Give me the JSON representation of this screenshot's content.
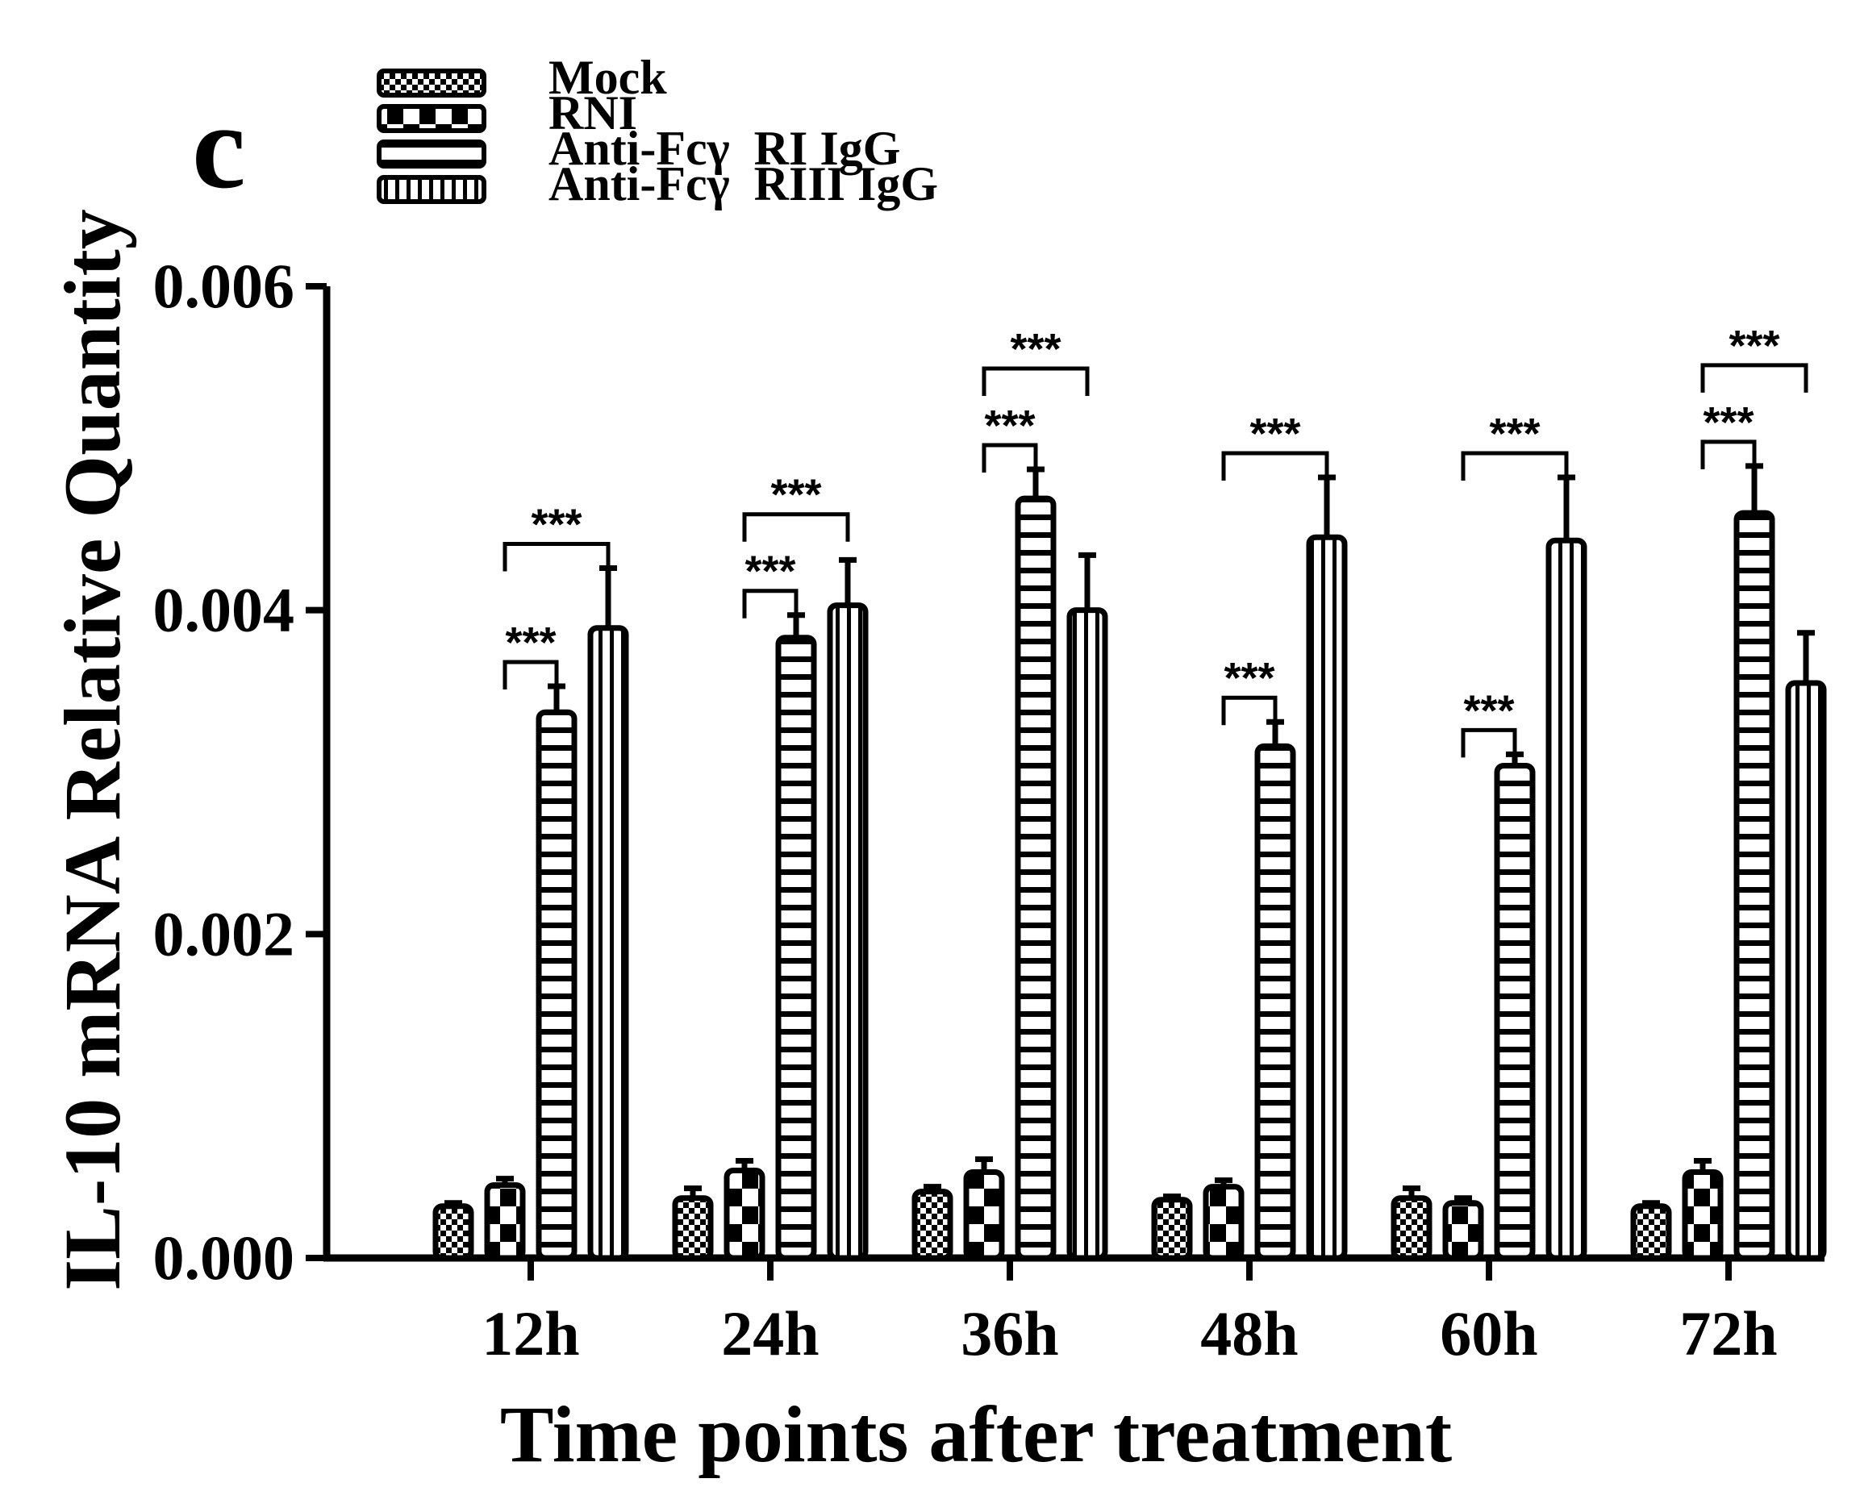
{
  "panel_label": "c",
  "chart_data": {
    "type": "bar",
    "title": "",
    "xlabel": "Time points after treatment",
    "ylabel": "IL-10 mRNA Relative Quantity",
    "ylim": [
      0,
      0.006
    ],
    "yticks": [
      "0.000",
      "0.002",
      "0.004",
      "0.006"
    ],
    "ytick_values": [
      0,
      0.002,
      0.004,
      0.006
    ],
    "categories": [
      "12h",
      "24h",
      "36h",
      "48h",
      "60h",
      "72h"
    ],
    "legend_position": "top-left",
    "series": [
      {
        "name": "Mock",
        "pattern": "checker",
        "values": [
          0.00032,
          0.00037,
          0.00041,
          0.00036,
          0.00037,
          0.00032
        ],
        "errors": [
          2e-05,
          6e-05,
          3e-05,
          2e-05,
          6e-05,
          2e-05
        ]
      },
      {
        "name": "RNI",
        "pattern": "blocks",
        "values": [
          0.00045,
          0.00054,
          0.00053,
          0.00044,
          0.00034,
          0.00053
        ],
        "errors": [
          4e-05,
          6e-05,
          8e-05,
          4e-05,
          3e-05,
          7e-05
        ]
      },
      {
        "name": "Anti-Fcγ  RI IgG",
        "pattern": "horizontal",
        "values": [
          0.00337,
          0.00383,
          0.00469,
          0.00316,
          0.00304,
          0.0046
        ],
        "errors": [
          0.00016,
          0.00014,
          0.00018,
          0.00015,
          7e-05,
          0.00029
        ]
      },
      {
        "name": "Anti-Fcγ  RIII IgG",
        "pattern": "vertical",
        "values": [
          0.00389,
          0.00403,
          0.004,
          0.00445,
          0.00443,
          0.00355
        ],
        "errors": [
          0.00037,
          0.00028,
          0.00034,
          0.00037,
          0.00039,
          0.00031
        ]
      }
    ],
    "significance": [
      {
        "category": "12h",
        "from": 1,
        "to": 2,
        "label": "***"
      },
      {
        "category": "12h",
        "from": 1,
        "to": 3,
        "label": "***"
      },
      {
        "category": "24h",
        "from": 1,
        "to": 2,
        "label": "***"
      },
      {
        "category": "24h",
        "from": 1,
        "to": 3,
        "label": "***"
      },
      {
        "category": "36h",
        "from": 1,
        "to": 2,
        "label": "***"
      },
      {
        "category": "36h",
        "from": 1,
        "to": 3,
        "label": "***"
      },
      {
        "category": "48h",
        "from": 1,
        "to": 2,
        "label": "***"
      },
      {
        "category": "48h",
        "from": 1,
        "to": 3,
        "label": "***"
      },
      {
        "category": "60h",
        "from": 1,
        "to": 2,
        "label": "***"
      },
      {
        "category": "60h",
        "from": 1,
        "to": 3,
        "label": "***"
      },
      {
        "category": "72h",
        "from": 1,
        "to": 2,
        "label": "***"
      },
      {
        "category": "72h",
        "from": 1,
        "to": 3,
        "label": "***"
      }
    ]
  }
}
